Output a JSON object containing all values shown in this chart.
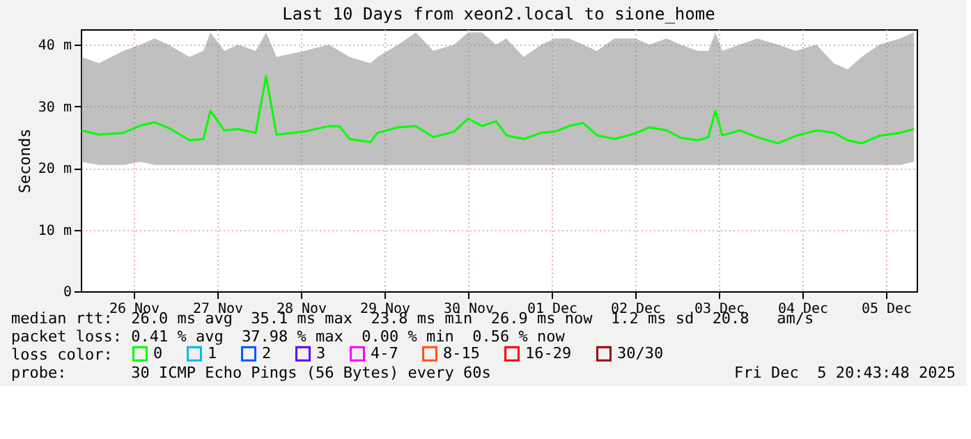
{
  "chart_data": {
    "type": "line",
    "title": "Last 10 Days from xeon2.local to sione_home",
    "ylabel": "Seconds",
    "legend_title": "loss color:",
    "legend": "bottom",
    "grid": true,
    "marker": "none",
    "line_style": "solid",
    "xlim": [
      "2025-11-25T20:48",
      "2025-12-05T20:48"
    ],
    "xticks": [
      {
        "value": "2025-11-26T12:00",
        "label": "26 Nov"
      },
      {
        "value": "2025-11-27T12:00",
        "label": "27 Nov"
      },
      {
        "value": "2025-11-28T12:00",
        "label": "28 Nov"
      },
      {
        "value": "2025-11-29T12:00",
        "label": "29 Nov"
      },
      {
        "value": "2025-11-30T12:00",
        "label": "30 Nov"
      },
      {
        "value": "2025-12-01T12:00",
        "label": "01 Dec"
      },
      {
        "value": "2025-12-02T12:00",
        "label": "02 Dec"
      },
      {
        "value": "2025-12-03T12:00",
        "label": "03 Dec"
      },
      {
        "value": "2025-12-04T12:00",
        "label": "04 Dec"
      },
      {
        "value": "2025-12-05T12:00",
        "label": "05 Dec"
      }
    ],
    "ylim": [
      0,
      42.5
    ],
    "yticks": [
      0,
      {
        "value": 10,
        "label": "10 m"
      },
      {
        "value": 20,
        "label": "20 m"
      },
      {
        "value": 30,
        "label": "30 m"
      },
      {
        "value": 40,
        "label": "40 m"
      }
    ],
    "x": [
      "2025-11-25T21:00",
      "2025-11-26T02:00",
      "2025-11-26T09:00",
      "2025-11-26T14:00",
      "2025-11-26T18:00",
      "2025-11-26T22:00",
      "2025-11-27T04:00",
      "2025-11-27T08:00",
      "2025-11-27T10:00",
      "2025-11-27T14:00",
      "2025-11-27T18:00",
      "2025-11-27T23:00",
      "2025-11-28T02:00",
      "2025-11-28T05:00",
      "2025-11-28T13:00",
      "2025-11-28T20:00",
      "2025-11-28T23:00",
      "2025-11-29T02:00",
      "2025-11-29T08:00",
      "2025-11-29T10:00",
      "2025-11-29T16:00",
      "2025-11-29T21:00",
      "2025-11-30T02:00",
      "2025-11-30T08:00",
      "2025-11-30T12:00",
      "2025-11-30T16:00",
      "2025-11-30T20:00",
      "2025-11-30T23:00",
      "2025-12-01T04:00",
      "2025-12-01T09:00",
      "2025-12-01T13:00",
      "2025-12-01T17:00",
      "2025-12-01T21:00",
      "2025-12-02T01:00",
      "2025-12-02T06:00",
      "2025-12-02T12:00",
      "2025-12-02T16:00",
      "2025-12-02T21:00",
      "2025-12-03T01:00",
      "2025-12-03T06:00",
      "2025-12-03T09:00",
      "2025-12-03T11:00",
      "2025-12-03T13:00",
      "2025-12-03T18:00",
      "2025-12-03T23:00",
      "2025-12-04T05:00",
      "2025-12-04T10:00",
      "2025-12-04T16:00",
      "2025-12-04T21:00",
      "2025-12-05T01:00",
      "2025-12-05T05:00",
      "2025-12-05T10:00",
      "2025-12-05T16:00",
      "2025-12-05T20:00"
    ],
    "series": [
      {
        "name": "0",
        "color": "#00ff00",
        "values": [
          26.1,
          25.4,
          25.7,
          26.9,
          27.4,
          26.5,
          24.5,
          24.7,
          29.3,
          26.1,
          26.3,
          25.7,
          34.9,
          25.4,
          25.9,
          26.8,
          26.8,
          24.7,
          24.2,
          25.7,
          26.6,
          26.8,
          25.0,
          25.9,
          28.0,
          26.8,
          27.6,
          25.3,
          24.7,
          25.7,
          25.9,
          26.8,
          27.3,
          25.3,
          24.7,
          25.6,
          26.6,
          26.1,
          24.9,
          24.5,
          25.0,
          29.3,
          25.3,
          26.1,
          25.0,
          24.0,
          25.2,
          26.1,
          25.7,
          24.5,
          24.0,
          25.2,
          25.7,
          26.3
        ],
        "lower": [
          21,
          20.5,
          20.5,
          21,
          20.5,
          20.5,
          20.5,
          20.5,
          20.5,
          20.5,
          20.5,
          20.5,
          20.5,
          20.5,
          20.5,
          20.5,
          20.5,
          20.5,
          20.5,
          20.5,
          20.5,
          20.5,
          20.5,
          20.5,
          20.5,
          20.5,
          20.5,
          20.5,
          20.5,
          20.5,
          20.5,
          20.5,
          20.5,
          20.5,
          20.5,
          20.5,
          20.5,
          20.5,
          20.5,
          20.5,
          20.5,
          20.5,
          20.5,
          20.5,
          20.5,
          20.5,
          20.5,
          20.5,
          20.5,
          20.5,
          20.5,
          20.5,
          20.5,
          21
        ],
        "upper": [
          38,
          37,
          39,
          40,
          41,
          40,
          38,
          39,
          42,
          39,
          40,
          39,
          42,
          38,
          39,
          40,
          39,
          38,
          37,
          38,
          40,
          42,
          39,
          40,
          42,
          42,
          40,
          41,
          38,
          40,
          41,
          41,
          40,
          39,
          41,
          41,
          40,
          41,
          40,
          39,
          39,
          42,
          39,
          40,
          41,
          40,
          39,
          40,
          37,
          36,
          38,
          40,
          41,
          42
        ]
      },
      {
        "name": "1",
        "color": "#00b8ff",
        "values": [
          null,
          null,
          null,
          null,
          null,
          null,
          null,
          null,
          null,
          null,
          null,
          null,
          null,
          null,
          null,
          null,
          null,
          null,
          null,
          null,
          null,
          null,
          null,
          null,
          null,
          null,
          null,
          null,
          null,
          null,
          null,
          null,
          null,
          null,
          null,
          null,
          null,
          null,
          null,
          null,
          null,
          null,
          null,
          null,
          null,
          null,
          null,
          null,
          null,
          null,
          null,
          null,
          null,
          null
        ]
      },
      {
        "name": "2",
        "color": "#0059ff",
        "values": [
          null,
          null,
          null,
          null,
          null,
          null,
          null,
          null,
          null,
          null,
          null,
          null,
          null,
          null,
          null,
          null,
          null,
          null,
          null,
          null,
          null,
          null,
          null,
          null,
          null,
          null,
          null,
          null,
          null,
          null,
          null,
          null,
          null,
          null,
          null,
          null,
          null,
          null,
          null,
          null,
          null,
          null,
          null,
          null,
          null,
          null,
          null,
          null,
          null,
          null,
          null,
          null,
          null,
          null
        ]
      },
      {
        "name": "3",
        "color": "#5e00ff",
        "values": [
          null,
          null,
          null,
          null,
          null,
          null,
          null,
          null,
          null,
          null,
          null,
          null,
          null,
          null,
          null,
          null,
          null,
          null,
          null,
          null,
          null,
          null,
          null,
          null,
          null,
          null,
          null,
          null,
          null,
          null,
          null,
          null,
          null,
          null,
          null,
          null,
          null,
          null,
          null,
          null,
          null,
          null,
          null,
          null,
          null,
          null,
          null,
          null,
          null,
          null,
          null,
          null,
          null,
          null
        ]
      },
      {
        "name": "4-7",
        "color": "#ff00ff",
        "values": [
          null,
          null,
          null,
          null,
          null,
          null,
          null,
          null,
          null,
          null,
          null,
          null,
          null,
          null,
          null,
          null,
          null,
          null,
          null,
          null,
          null,
          null,
          null,
          null,
          null,
          null,
          null,
          null,
          null,
          null,
          null,
          null,
          null,
          null,
          null,
          null,
          null,
          null,
          null,
          null,
          null,
          null,
          null,
          null,
          null,
          null,
          null,
          null,
          null,
          null,
          null,
          null,
          null,
          null
        ]
      },
      {
        "name": "8-15",
        "color": "#ff5500",
        "values": [
          null,
          null,
          null,
          null,
          null,
          null,
          null,
          null,
          null,
          null,
          null,
          null,
          null,
          null,
          null,
          null,
          null,
          null,
          null,
          null,
          null,
          null,
          null,
          null,
          null,
          null,
          null,
          null,
          null,
          null,
          null,
          null,
          null,
          null,
          null,
          null,
          null,
          null,
          null,
          null,
          null,
          null,
          null,
          null,
          null,
          null,
          null,
          null,
          null,
          null,
          null,
          null,
          null,
          null
        ]
      },
      {
        "name": "16-29",
        "color": "#ff0000",
        "values": [
          null,
          null,
          null,
          null,
          null,
          null,
          null,
          null,
          null,
          null,
          null,
          null,
          null,
          null,
          null,
          null,
          null,
          null,
          null,
          null,
          null,
          null,
          null,
          null,
          null,
          null,
          null,
          null,
          null,
          null,
          null,
          null,
          null,
          null,
          null,
          null,
          null,
          null,
          null,
          null,
          null,
          null,
          null,
          null,
          null,
          null,
          null,
          null,
          null,
          null,
          null,
          null,
          null,
          null
        ]
      },
      {
        "name": "30/30",
        "color": "#a10000",
        "values": [
          null,
          null,
          null,
          null,
          null,
          null,
          null,
          null,
          null,
          null,
          null,
          null,
          null,
          null,
          null,
          null,
          null,
          null,
          null,
          null,
          null,
          null,
          null,
          null,
          null,
          null,
          null,
          null,
          null,
          null,
          null,
          null,
          null,
          null,
          null,
          null,
          null,
          null,
          null,
          null,
          null,
          null,
          null,
          null,
          null,
          null,
          null,
          null,
          null,
          null,
          null,
          null,
          null,
          null
        ]
      }
    ],
    "annotations": [
      "median rtt:  26.0 ms avg  35.1 ms max  23.8 ms min  26.9 ms now  1.2 ms sd  20.8   am/s",
      "packet loss: 0.41 % avg  37.98 % max  0.00 % min  0.56 % now",
      "probe:       30 ICMP Echo Pings (56 Bytes) every 60s",
      "Fri Dec  5 20:43:48 2025"
    ]
  }
}
